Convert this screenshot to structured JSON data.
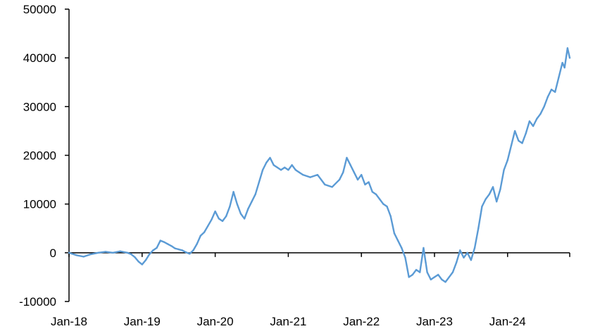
{
  "chart_data": {
    "type": "line",
    "title": "",
    "xlabel": "",
    "ylabel": "",
    "ylim": [
      -10000,
      50000
    ],
    "yticks": [
      -10000,
      0,
      10000,
      20000,
      30000,
      40000,
      50000
    ],
    "ytick_labels": [
      "-10000",
      "0",
      "10000",
      "20000",
      "30000",
      "40000",
      "50000"
    ],
    "xlim": [
      2018.0,
      2024.85
    ],
    "xticks": [
      2018,
      2019,
      2020,
      2021,
      2022,
      2023,
      2024
    ],
    "xtick_labels": [
      "Jan-18",
      "Jan-19",
      "Jan-20",
      "Jan-21",
      "Jan-22",
      "Jan-23",
      "Jan-24"
    ],
    "grid": false,
    "legend": "none",
    "colors": {
      "series": "#5b9bd5",
      "axis": "#000000"
    },
    "series": [
      {
        "x": [
          2018.0,
          2018.1,
          2018.2,
          2018.3,
          2018.4,
          2018.5,
          2018.6,
          2018.7,
          2018.8,
          2018.85,
          2018.9,
          2018.95,
          2019.0,
          2019.05,
          2019.1,
          2019.15,
          2019.2,
          2019.25,
          2019.3,
          2019.35,
          2019.4,
          2019.45,
          2019.5,
          2019.55,
          2019.6,
          2019.65,
          2019.7,
          2019.75,
          2019.8,
          2019.85,
          2019.9,
          2019.95,
          2020.0,
          2020.05,
          2020.1,
          2020.15,
          2020.2,
          2020.25,
          2020.3,
          2020.35,
          2020.4,
          2020.45,
          2020.5,
          2020.55,
          2020.6,
          2020.65,
          2020.7,
          2020.75,
          2020.8,
          2020.85,
          2020.9,
          2020.95,
          2021.0,
          2021.05,
          2021.1,
          2021.15,
          2021.2,
          2021.3,
          2021.4,
          2021.5,
          2021.6,
          2021.7,
          2021.75,
          2021.8,
          2021.85,
          2021.9,
          2021.95,
          2022.0,
          2022.05,
          2022.1,
          2022.15,
          2022.2,
          2022.25,
          2022.3,
          2022.35,
          2022.4,
          2022.45,
          2022.5,
          2022.55,
          2022.6,
          2022.65,
          2022.7,
          2022.75,
          2022.8,
          2022.85,
          2022.88,
          2022.9,
          2022.95,
          2023.0,
          2023.05,
          2023.1,
          2023.15,
          2023.2,
          2023.25,
          2023.3,
          2023.35,
          2023.4,
          2023.45,
          2023.5,
          2023.55,
          2023.6,
          2023.65,
          2023.7,
          2023.75,
          2023.8,
          2023.85,
          2023.9,
          2023.95,
          2024.0,
          2024.05,
          2024.1,
          2024.15,
          2024.2,
          2024.25,
          2024.3,
          2024.35,
          2024.4,
          2024.45,
          2024.5,
          2024.55,
          2024.6,
          2024.65,
          2024.7,
          2024.75,
          2024.78,
          2024.82,
          2024.85
        ],
        "y": [
          0,
          -500,
          -800,
          -300,
          0,
          200,
          0,
          300,
          0,
          -300,
          -900,
          -1800,
          -2400,
          -1500,
          -300,
          500,
          1000,
          2500,
          2200,
          1800,
          1400,
          900,
          700,
          500,
          100,
          -200,
          500,
          1800,
          3500,
          4200,
          5500,
          6800,
          8500,
          7000,
          6500,
          7500,
          9500,
          12500,
          10000,
          8000,
          7000,
          9000,
          10500,
          12000,
          14500,
          17000,
          18500,
          19500,
          18000,
          17500,
          17000,
          17500,
          17000,
          18000,
          17000,
          16500,
          16000,
          15500,
          16000,
          14000,
          13500,
          15000,
          16500,
          19500,
          18000,
          16500,
          15000,
          16000,
          14000,
          14500,
          12500,
          12000,
          11000,
          10000,
          9500,
          7500,
          4000,
          2500,
          1000,
          -1000,
          -5000,
          -4500,
          -3500,
          -4000,
          1000,
          -2000,
          -4000,
          -5500,
          -5000,
          -4500,
          -5500,
          -6000,
          -5000,
          -4000,
          -2000,
          500,
          -1000,
          0,
          -1500,
          1000,
          5000,
          9500,
          11000,
          12000,
          13500,
          10500,
          13000,
          17000,
          19000,
          22000,
          25000,
          23000,
          22500,
          24500,
          27000,
          26000,
          27500,
          28500,
          30000,
          32000,
          33500,
          33000,
          36000,
          39000,
          38000,
          42000,
          40000
        ]
      }
    ]
  }
}
